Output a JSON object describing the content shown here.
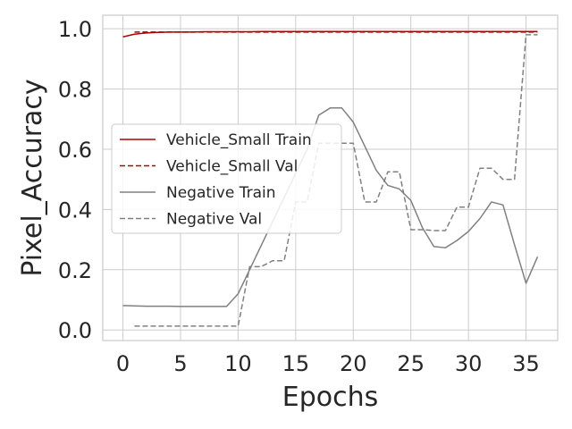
{
  "chart_data": {
    "type": "line",
    "title": "",
    "xlabel": "Epochs",
    "ylabel": "Pixel_Accuracy",
    "xlim": [
      -1.75,
      37.75
    ],
    "ylim": [
      -0.035,
      1.045
    ],
    "xticks": [
      0,
      5,
      10,
      15,
      20,
      25,
      30,
      35
    ],
    "yticks": [
      0.0,
      0.2,
      0.4,
      0.6,
      0.8,
      1.0
    ],
    "ytick_labels": [
      "0.0",
      "0.2",
      "0.4",
      "0.6",
      "0.8",
      "1.0"
    ],
    "grid": true,
    "legend_position": "center-left",
    "series": [
      {
        "name": "Vehicle_Small Train",
        "color": "#b00000",
        "style": "solid",
        "x": [
          0,
          1,
          2,
          3,
          4,
          5,
          6,
          7,
          8,
          9,
          10,
          11,
          12,
          13,
          14,
          15,
          16,
          17,
          18,
          19,
          20,
          21,
          22,
          23,
          24,
          25,
          26,
          27,
          28,
          29,
          30,
          31,
          32,
          33,
          34,
          35,
          36
        ],
        "y": [
          0.973,
          0.982,
          0.986,
          0.988,
          0.989,
          0.989,
          0.989,
          0.99,
          0.99,
          0.99,
          0.99,
          0.99,
          0.991,
          0.991,
          0.991,
          0.991,
          0.991,
          0.991,
          0.991,
          0.991,
          0.991,
          0.991,
          0.991,
          0.991,
          0.991,
          0.991,
          0.991,
          0.991,
          0.991,
          0.991,
          0.991,
          0.991,
          0.991,
          0.991,
          0.991,
          0.991,
          0.991
        ]
      },
      {
        "name": "Vehicle_Small Val",
        "color": "#b00000",
        "style": "dashed",
        "x": [
          1,
          2,
          3,
          4,
          5,
          6,
          7,
          8,
          9,
          10,
          11,
          12,
          13,
          14,
          15,
          16,
          17,
          18,
          19,
          20,
          21,
          22,
          23,
          24,
          25,
          26,
          27,
          28,
          29,
          30,
          31,
          32,
          33,
          34,
          35,
          36
        ],
        "y": [
          0.989,
          0.989,
          0.989,
          0.989,
          0.989,
          0.989,
          0.989,
          0.989,
          0.989,
          0.989,
          0.989,
          0.989,
          0.989,
          0.989,
          0.989,
          0.989,
          0.989,
          0.989,
          0.989,
          0.989,
          0.989,
          0.989,
          0.989,
          0.989,
          0.989,
          0.989,
          0.989,
          0.989,
          0.989,
          0.989,
          0.989,
          0.989,
          0.989,
          0.989,
          0.989,
          0.989
        ]
      },
      {
        "name": "Negative Train",
        "color": "#808080",
        "style": "solid",
        "x": [
          0,
          1,
          2,
          3,
          4,
          5,
          6,
          7,
          8,
          9,
          10,
          11,
          12,
          13,
          14,
          15,
          16,
          17,
          18,
          19,
          20,
          21,
          22,
          23,
          24,
          25,
          26,
          27,
          28,
          29,
          30,
          31,
          32,
          33,
          34,
          35,
          36
        ],
        "y": [
          0.081,
          0.08,
          0.079,
          0.079,
          0.079,
          0.078,
          0.078,
          0.078,
          0.078,
          0.078,
          0.12,
          0.2,
          0.28,
          0.36,
          0.44,
          0.52,
          0.6,
          0.713,
          0.737,
          0.737,
          0.69,
          0.61,
          0.53,
          0.48,
          0.468,
          0.43,
          0.34,
          0.277,
          0.273,
          0.297,
          0.327,
          0.37,
          0.425,
          0.415,
          0.283,
          0.155,
          0.243
        ]
      },
      {
        "name": "Negative Val",
        "color": "#808080",
        "style": "dashed",
        "x": [
          1,
          2,
          3,
          4,
          5,
          6,
          7,
          8,
          9,
          10,
          11,
          12,
          13,
          14,
          15,
          16,
          17,
          18,
          19,
          20,
          21,
          22,
          23,
          24,
          25,
          26,
          27,
          28,
          29,
          30,
          31,
          32,
          33,
          34,
          35,
          36
        ],
        "y": [
          0.013,
          0.013,
          0.013,
          0.013,
          0.013,
          0.013,
          0.013,
          0.013,
          0.013,
          0.013,
          0.21,
          0.21,
          0.23,
          0.23,
          0.425,
          0.425,
          0.62,
          0.62,
          0.62,
          0.62,
          0.425,
          0.425,
          0.525,
          0.525,
          0.333,
          0.333,
          0.33,
          0.33,
          0.408,
          0.408,
          0.537,
          0.537,
          0.5,
          0.5,
          0.98,
          0.98
        ]
      }
    ]
  }
}
